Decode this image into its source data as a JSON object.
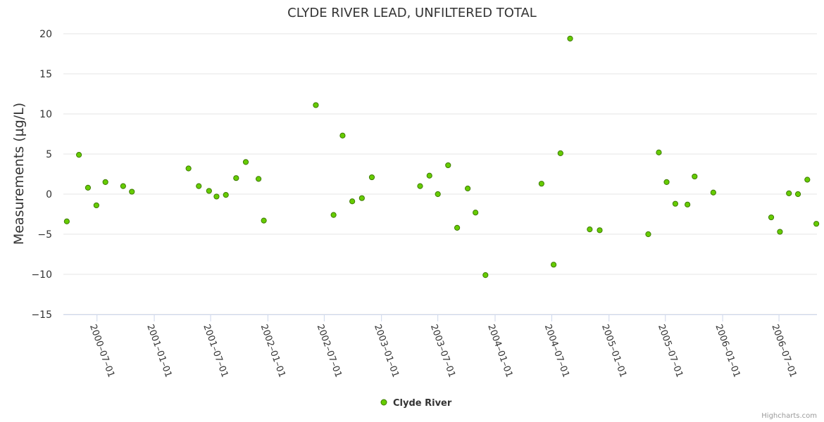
{
  "chart_data": {
    "type": "scatter",
    "title": "CLYDE RIVER LEAD, UNFILTERED TOTAL",
    "xlabel": "",
    "ylabel": "Measurements (µg/L)",
    "ylim": [
      -15,
      20
    ],
    "yticks": [
      -15,
      -10,
      -5,
      0,
      5,
      10,
      15,
      20
    ],
    "xlim": [
      "2000-03-15",
      "2006-10-31"
    ],
    "xticks": [
      "2000-07-01",
      "2001-01-01",
      "2001-07-01",
      "2002-01-01",
      "2002-07-01",
      "2003-01-01",
      "2003-07-01",
      "2004-01-01",
      "2004-07-01",
      "2005-01-01",
      "2005-07-01",
      "2006-01-01",
      "2006-07-01"
    ],
    "grid": true,
    "legend": "bottom-center",
    "colors": {
      "marker_fill": "#66cc00",
      "marker_stroke": "#3d7a00"
    },
    "series": [
      {
        "name": "Clyde River",
        "points": [
          [
            "2000-03-26",
            -3.4
          ],
          [
            "2000-05-04",
            4.9
          ],
          [
            "2000-06-02",
            0.8
          ],
          [
            "2000-06-29",
            -1.4
          ],
          [
            "2000-07-28",
            1.5
          ],
          [
            "2000-09-23",
            1.0
          ],
          [
            "2000-10-21",
            0.3
          ],
          [
            "2001-04-21",
            3.2
          ],
          [
            "2001-05-24",
            1.0
          ],
          [
            "2001-06-26",
            0.4
          ],
          [
            "2001-07-20",
            -0.3
          ],
          [
            "2001-08-19",
            -0.1
          ],
          [
            "2001-09-21",
            2.0
          ],
          [
            "2001-10-22",
            4.0
          ],
          [
            "2001-12-02",
            1.9
          ],
          [
            "2001-12-19",
            -3.3
          ],
          [
            "2002-06-04",
            11.1
          ],
          [
            "2002-07-31",
            -2.6
          ],
          [
            "2002-08-29",
            7.3
          ],
          [
            "2002-09-29",
            -0.9
          ],
          [
            "2002-10-30",
            -0.5
          ],
          [
            "2002-12-01",
            2.1
          ],
          [
            "2003-05-05",
            1.0
          ],
          [
            "2003-06-04",
            2.3
          ],
          [
            "2003-07-01",
            0.0
          ],
          [
            "2003-08-03",
            3.6
          ],
          [
            "2003-09-01",
            -4.2
          ],
          [
            "2003-10-05",
            0.7
          ],
          [
            "2003-10-30",
            -2.3
          ],
          [
            "2003-12-01",
            -10.1
          ],
          [
            "2004-05-29",
            1.3
          ],
          [
            "2004-07-07",
            -8.8
          ],
          [
            "2004-07-29",
            5.1
          ],
          [
            "2004-08-29",
            19.4
          ],
          [
            "2004-10-31",
            -4.4
          ],
          [
            "2004-12-02",
            -4.5
          ],
          [
            "2005-05-07",
            -5.0
          ],
          [
            "2005-06-10",
            5.2
          ],
          [
            "2005-07-05",
            1.5
          ],
          [
            "2005-08-02",
            -1.2
          ],
          [
            "2005-09-10",
            -1.3
          ],
          [
            "2005-10-03",
            2.2
          ],
          [
            "2005-12-02",
            0.2
          ],
          [
            "2006-06-06",
            -2.9
          ],
          [
            "2006-07-04",
            -4.7
          ],
          [
            "2006-08-02",
            0.1
          ],
          [
            "2006-08-31",
            0.0
          ],
          [
            "2006-09-30",
            1.8
          ],
          [
            "2006-10-29",
            -3.7
          ]
        ]
      }
    ]
  },
  "credits": "Highcharts.com"
}
